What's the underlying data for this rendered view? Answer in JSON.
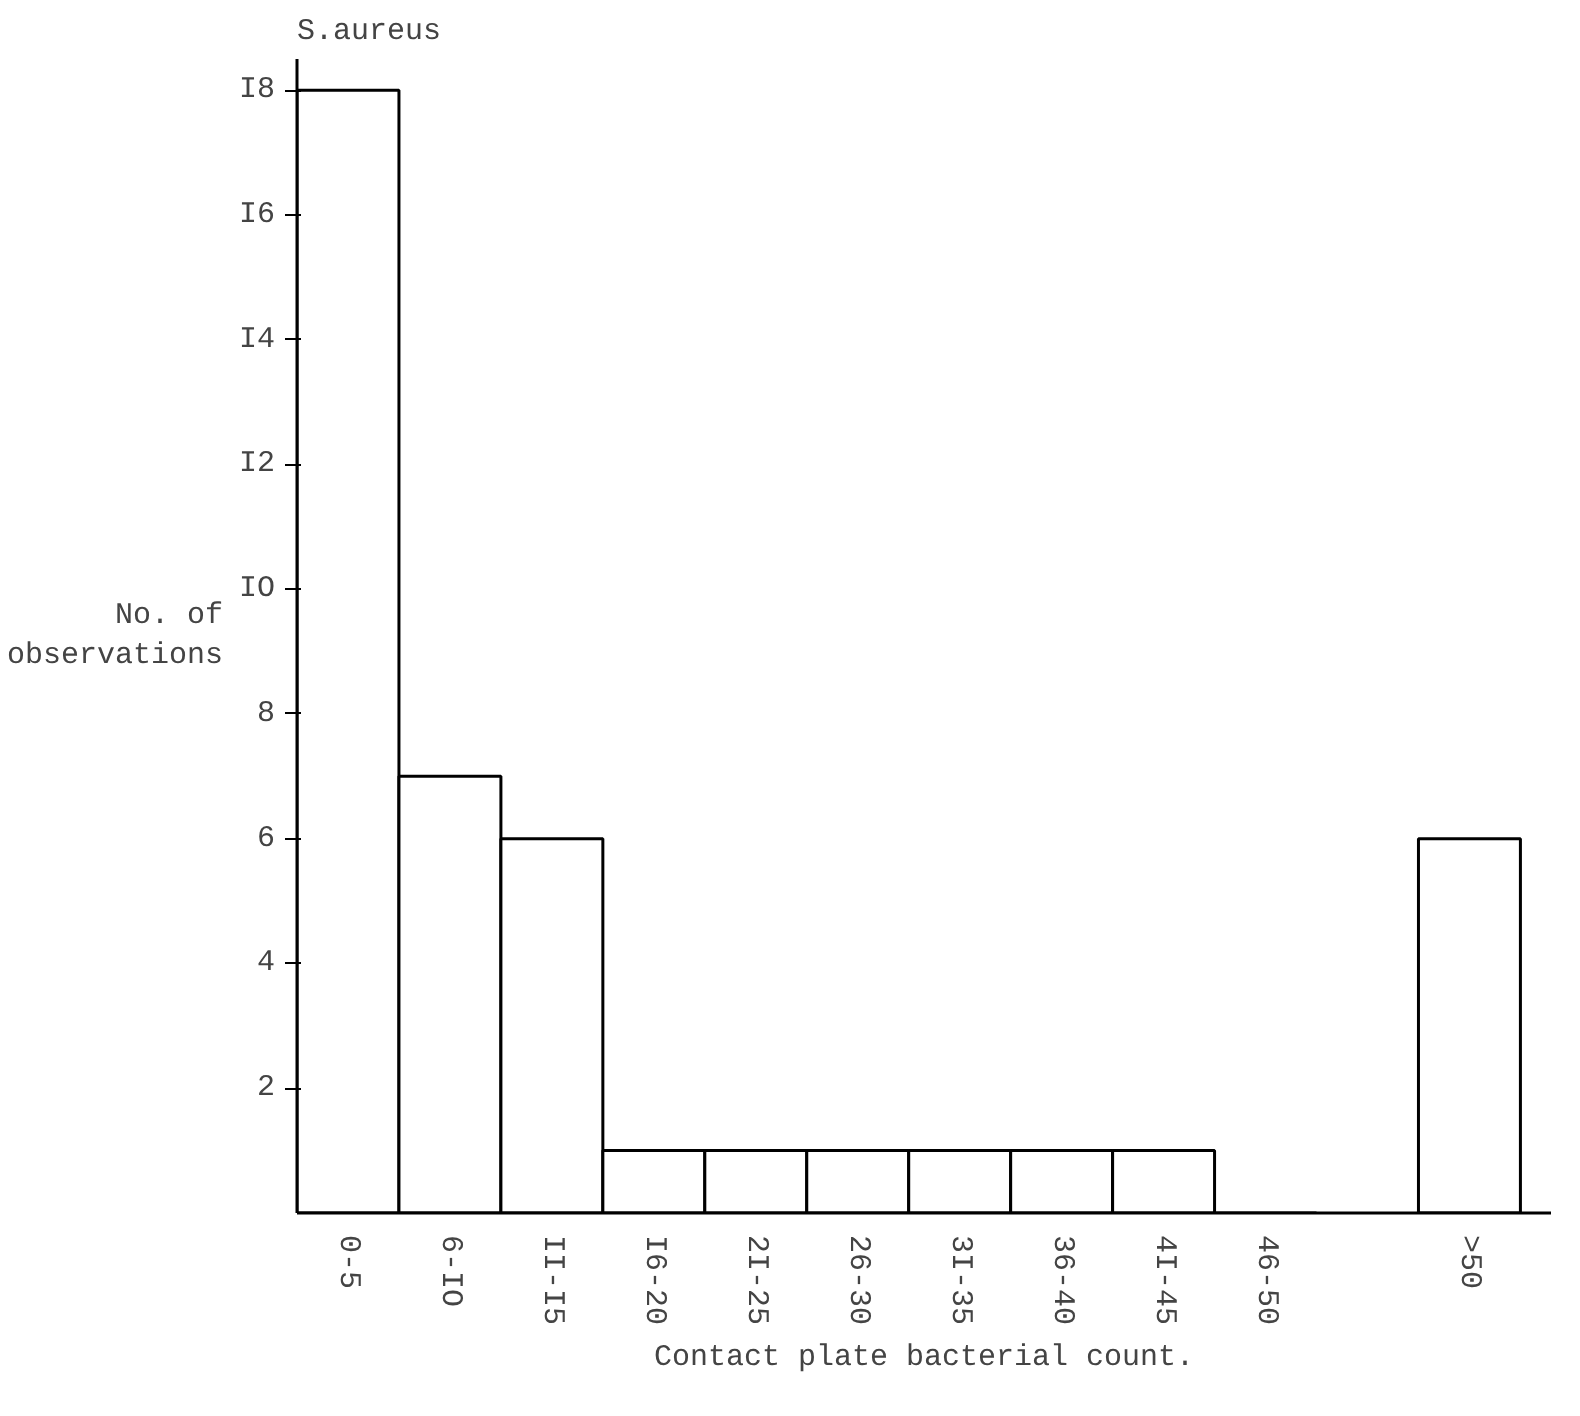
{
  "chart_data": {
    "type": "bar",
    "title": "S.aureus",
    "xlabel": "Contact plate bacterial count.",
    "ylabel": "No. of observations",
    "categories": [
      "0-5",
      "6-IO",
      "II-I5",
      "I6-20",
      "2I-25",
      "26-30",
      "3I-35",
      "36-40",
      "4I-45",
      "46-50",
      null,
      ">50"
    ],
    "values": [
      18,
      7,
      6,
      1,
      1,
      1,
      1,
      1,
      1,
      0,
      null,
      6
    ],
    "color": "#ffffff",
    "ylim": [
      0,
      18.5
    ],
    "yticks": [
      {
        "value": 2,
        "label": "2"
      },
      {
        "value": 4,
        "label": "4"
      },
      {
        "value": 6,
        "label": "6"
      },
      {
        "value": 8,
        "label": "8"
      },
      {
        "value": 10,
        "label": "IO"
      },
      {
        "value": 12,
        "label": "I2"
      },
      {
        "value": 14,
        "label": "I4"
      },
      {
        "value": 16,
        "label": "I6"
      },
      {
        "value": 18,
        "label": "I8"
      }
    ],
    "grid": false
  }
}
